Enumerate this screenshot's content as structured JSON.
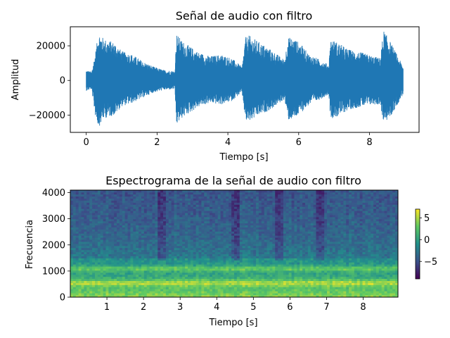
{
  "chart_data": [
    {
      "type": "line",
      "title": "Señal de audio con filtro",
      "xlabel": "Tiempo [s]",
      "ylabel": "Amplitud",
      "xlim": [
        -0.45,
        9.4
      ],
      "ylim": [
        -30000,
        31000
      ],
      "xticks": [
        0,
        2,
        4,
        6,
        8
      ],
      "yticks": [
        -20000,
        0,
        20000
      ],
      "ytick_labels": [
        "−20000",
        "0",
        "20000"
      ],
      "grid": false,
      "color": "#1f77b4",
      "duration": 8.95,
      "envelope": {
        "t": [
          0,
          0.15,
          0.25,
          0.35,
          0.5,
          0.8,
          1.0,
          1.3,
          1.6,
          1.9,
          2.2,
          2.5,
          2.55,
          2.7,
          2.9,
          3.2,
          3.5,
          3.8,
          4.1,
          4.4,
          4.5,
          4.6,
          4.9,
          5.2,
          5.4,
          5.6,
          5.7,
          5.9,
          6.1,
          6.3,
          6.6,
          6.85,
          6.9,
          7.1,
          7.4,
          7.8,
          8.1,
          8.3,
          8.4,
          8.6,
          8.95
        ],
        "upper": [
          6000,
          5000,
          15000,
          28000,
          24000,
          22000,
          17000,
          15000,
          11000,
          8000,
          6000,
          5500,
          27000,
          23000,
          20000,
          16000,
          14000,
          15000,
          13000,
          8000,
          25000,
          26000,
          22000,
          18000,
          15000,
          12000,
          25000,
          24000,
          20000,
          15000,
          12000,
          9000,
          24000,
          22000,
          18000,
          16000,
          14000,
          13000,
          29000,
          22000,
          8000
        ],
        "lower": [
          -6000,
          -5000,
          -20000,
          -27000,
          -22000,
          -20000,
          -15000,
          -13000,
          -10000,
          -7000,
          -5500,
          -5000,
          -26000,
          -22000,
          -19000,
          -15000,
          -13000,
          -14000,
          -12000,
          -7000,
          -24000,
          -24000,
          -20000,
          -17000,
          -14000,
          -11000,
          -23000,
          -22000,
          -18000,
          -14000,
          -11000,
          -8000,
          -22000,
          -21000,
          -17000,
          -15000,
          -14000,
          -14000,
          -25000,
          -21000,
          -8000
        ]
      }
    },
    {
      "type": "heatmap",
      "title": "Espectrograma de la señal de audio con filtro",
      "xlabel": "Tiempo [s]",
      "ylabel": "Frecuencia",
      "xlim": [
        0,
        8.95
      ],
      "ylim": [
        0,
        4096
      ],
      "xticks": [
        1,
        2,
        3,
        4,
        5,
        6,
        7,
        8
      ],
      "yticks": [
        0,
        1000,
        2000,
        3000,
        4000
      ],
      "colormap": "viridis",
      "colorbar": {
        "range": [
          -9,
          7
        ],
        "ticks": [
          5,
          0,
          -5
        ],
        "tick_labels": [
          "5",
          "0",
          "−5"
        ]
      },
      "segment_boundaries": [
        2.5,
        4.5,
        5.7,
        6.85
      ],
      "bright_bands_hz": [
        550,
        1100
      ],
      "interpretation": "Energy concentrated below ~1500 Hz, strongest bands near 550 Hz and 1100 Hz, decaying above ~2000 Hz"
    }
  ]
}
